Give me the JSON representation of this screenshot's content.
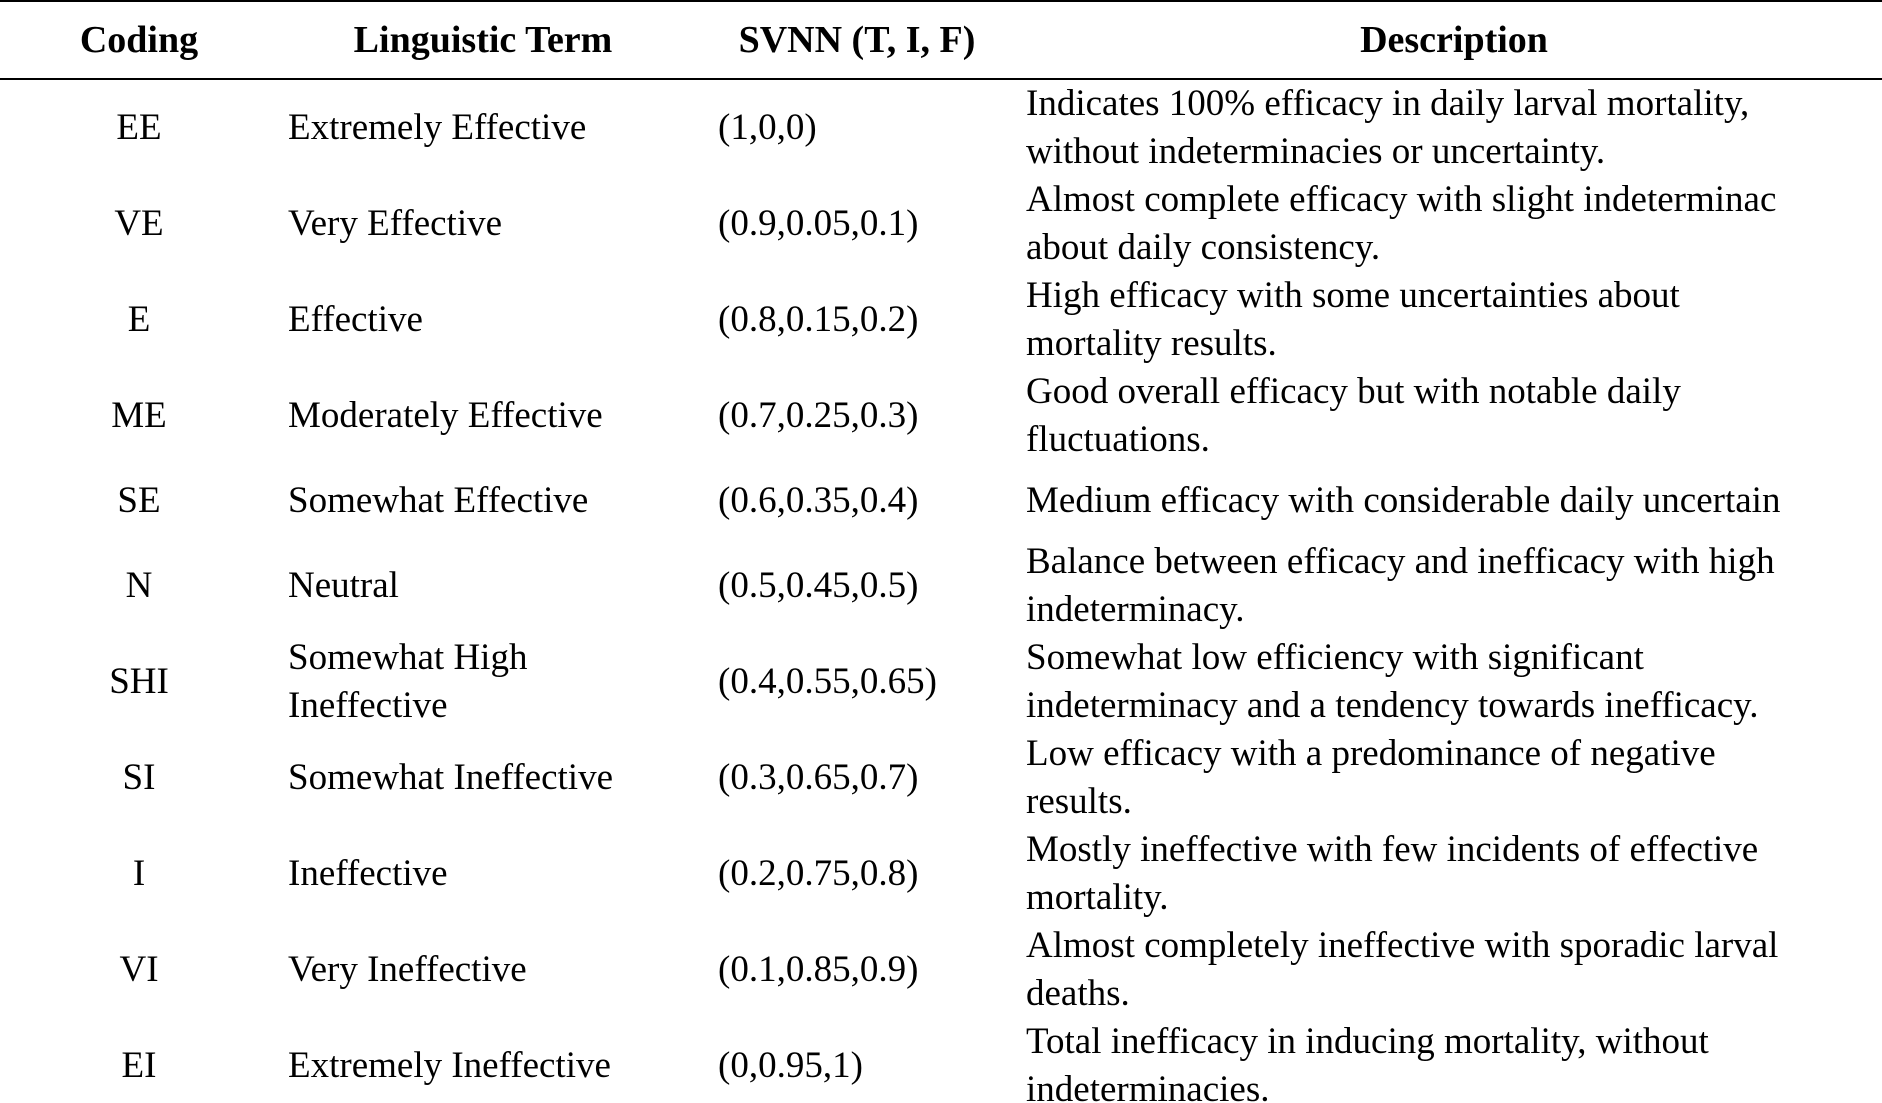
{
  "table": {
    "headers": {
      "coding": "Coding",
      "term": "Linguistic Term",
      "svnn": "SVNN (T, I, F)",
      "description": "Description"
    },
    "rows": [
      {
        "coding": "EE",
        "term": "Extremely Effective",
        "svnn": "(1,0,0)",
        "desc_line1": "Indicates 100% efficacy in daily larval mortality,",
        "desc_line2": "without indeterminacies or uncertainty."
      },
      {
        "coding": "VE",
        "term": "Very Effective",
        "svnn": "(0.9,0.05,0.1)",
        "desc_line1": "Almost complete efficacy with slight indeterminac",
        "desc_line2": "about daily consistency."
      },
      {
        "coding": "E",
        "term": "Effective",
        "svnn": "(0.8,0.15,0.2)",
        "desc_line1": "High efficacy with some uncertainties about",
        "desc_line2": "mortality results."
      },
      {
        "coding": "ME",
        "term": "Moderately Effective",
        "svnn": "(0.7,0.25,0.3)",
        "desc_line1": "Good overall efficacy but with notable daily",
        "desc_line2": "fluctuations."
      },
      {
        "coding": "SE",
        "term": "Somewhat Effective",
        "svnn": "(0.6,0.35,0.4)",
        "desc_line1": "Medium efficacy with considerable daily uncertain",
        "desc_line2": ""
      },
      {
        "coding": "N",
        "term": "Neutral",
        "svnn": "(0.5,0.45,0.5)",
        "desc_line1": "Balance between efficacy and inefficacy with high",
        "desc_line2": "indeterminacy."
      },
      {
        "coding": "SHI",
        "term_line1": "Somewhat High",
        "term_line2": "Ineffective",
        "svnn": "(0.4,0.55,0.65)",
        "desc_line1": "Somewhat low efficiency with significant",
        "desc_line2": "indeterminacy and a tendency towards inefficacy."
      },
      {
        "coding": "SI",
        "term": "Somewhat Ineffective",
        "svnn": "(0.3,0.65,0.7)",
        "desc_line1": "Low efficacy with a predominance of negative",
        "desc_line2": "results."
      },
      {
        "coding": "I",
        "term": "Ineffective",
        "svnn": "(0.2,0.75,0.8)",
        "desc_line1": "Mostly ineffective with few incidents of effective",
        "desc_line2": "mortality."
      },
      {
        "coding": "VI",
        "term": "Very Ineffective",
        "svnn": "(0.1,0.85,0.9)",
        "desc_line1": "Almost completely ineffective with sporadic larval",
        "desc_line2": "deaths."
      },
      {
        "coding": "EI",
        "term": "Extremely Ineffective",
        "svnn": "(0,0.95,1)",
        "desc_line1": "Total inefficacy in inducing mortality, without",
        "desc_line2": "indeterminacies."
      }
    ]
  }
}
